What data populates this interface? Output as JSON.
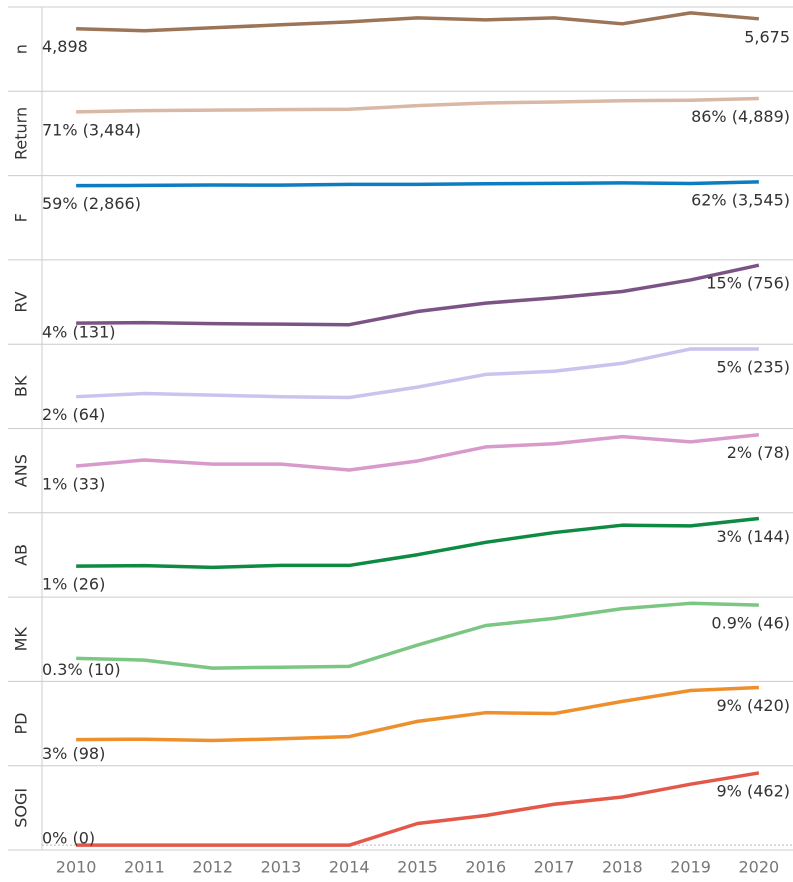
{
  "chart_data": {
    "type": "line",
    "x": [
      2010,
      2011,
      2012,
      2013,
      2014,
      2015,
      2016,
      2017,
      2018,
      2019,
      2020
    ],
    "xlim": [
      2009.5,
      2020.5
    ],
    "xticks": [
      2010,
      2011,
      2012,
      2013,
      2014,
      2015,
      2016,
      2017,
      2018,
      2019,
      2020
    ],
    "series": [
      {
        "name": "n",
        "color": "#9c7458",
        "ylim": [
          0,
          6600
        ],
        "values": [
          4898,
          4740,
          4973,
          5206,
          5439,
          5750,
          5594,
          5750,
          5284,
          6138,
          5675
        ],
        "value_labels": [
          "4,898",
          null,
          null,
          null,
          null,
          null,
          null,
          null,
          null,
          null,
          "5,675"
        ]
      },
      {
        "name": "Return",
        "color": "#d9b8a6",
        "ylim": [
          0,
          94
        ],
        "values": [
          71,
          72.5,
          73,
          73.5,
          74,
          78,
          81,
          82,
          83.5,
          84,
          86
        ],
        "value_labels": [
          "71% (3,484)",
          null,
          null,
          null,
          null,
          null,
          null,
          null,
          null,
          null,
          "86% (4,889)"
        ]
      },
      {
        "name": "F",
        "color": "#0d7dc1",
        "ylim": [
          0,
          67
        ],
        "values": [
          59,
          59.2,
          59.5,
          59.4,
          60,
          60,
          60.5,
          60.8,
          61.2,
          60.7,
          62
        ],
        "value_labels": [
          "59% (2,866)",
          null,
          null,
          null,
          null,
          null,
          null,
          null,
          null,
          null,
          "62% (3,545)"
        ]
      },
      {
        "name": "RV",
        "color": "#7b5485",
        "ylim": [
          0,
          16
        ],
        "values": [
          4,
          4.1,
          3.9,
          3.8,
          3.7,
          6.2,
          7.8,
          8.8,
          10,
          12.2,
          15
        ],
        "value_labels": [
          "4% (131)",
          null,
          null,
          null,
          null,
          null,
          null,
          null,
          null,
          null,
          "15% (756)"
        ]
      },
      {
        "name": "BK",
        "color": "#c8c4ee",
        "ylim": [
          0,
          5.3
        ],
        "values": [
          2,
          2.2,
          2.1,
          2,
          1.95,
          2.6,
          3.4,
          3.6,
          4.1,
          5,
          5
        ],
        "value_labels": [
          "2% (64)",
          null,
          null,
          null,
          null,
          null,
          null,
          null,
          null,
          null,
          "5% (235)"
        ]
      },
      {
        "name": "ANS",
        "color": "#d89acb",
        "ylim": [
          -0.5,
          2.2
        ],
        "values": [
          1,
          1.19,
          1.06,
          1.06,
          0.87,
          1.16,
          1.61,
          1.71,
          1.94,
          1.77,
          2
        ],
        "value_labels": [
          "1% (33)",
          null,
          null,
          null,
          null,
          null,
          null,
          null,
          null,
          null,
          "2% (78)"
        ]
      },
      {
        "name": "AB",
        "color": "#0f8a43",
        "ylim": [
          -0.3,
          3.24
        ],
        "values": [
          1,
          1.02,
          0.95,
          1.03,
          1.03,
          1.48,
          2,
          2.41,
          2.72,
          2.69,
          3
        ],
        "value_labels": [
          "1% (26)",
          null,
          null,
          null,
          null,
          null,
          null,
          null,
          null,
          null,
          "3% (144)"
        ]
      },
      {
        "name": "MK",
        "color": "#7cc684",
        "ylim": [
          0.04,
          0.99
        ],
        "values": [
          0.3,
          0.28,
          0.19,
          0.2,
          0.21,
          0.45,
          0.67,
          0.75,
          0.86,
          0.92,
          0.9
        ],
        "value_labels": [
          "0.3% (10)",
          null,
          null,
          null,
          null,
          null,
          null,
          null,
          null,
          null,
          "0.9% (46)"
        ]
      },
      {
        "name": "PD",
        "color": "#ee8f2e",
        "ylim": [
          0,
          9.7
        ],
        "values": [
          3,
          3.05,
          2.9,
          3.1,
          3.35,
          5.1,
          6.1,
          6,
          7.4,
          8.65,
          9
        ],
        "value_labels": [
          "3% (98)",
          null,
          null,
          null,
          null,
          null,
          null,
          null,
          null,
          null,
          "9% (420)"
        ]
      },
      {
        "name": "SOGI",
        "color": "#e4584a",
        "ylim": [
          -0.6,
          9.9
        ],
        "zero_line": true,
        "values": [
          0,
          0,
          0,
          0,
          0,
          2.7,
          3.7,
          5.1,
          6,
          7.6,
          9
        ],
        "value_labels": [
          "0% (0)",
          null,
          null,
          null,
          null,
          null,
          null,
          null,
          null,
          null,
          "9% (462)"
        ]
      }
    ]
  }
}
